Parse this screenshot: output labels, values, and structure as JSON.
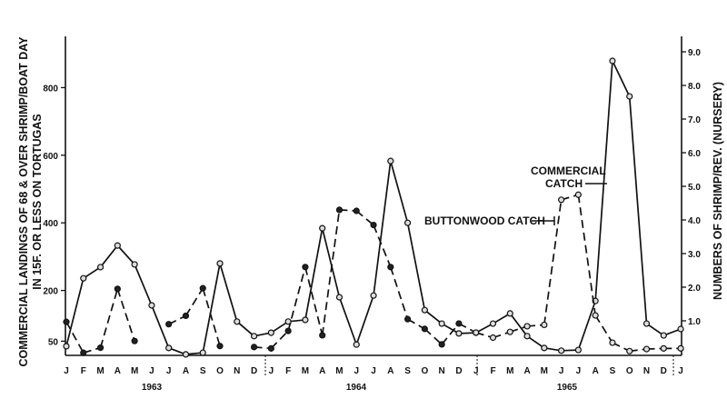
{
  "chart_data": {
    "type": "line",
    "x_labels": [
      "J",
      "F",
      "M",
      "A",
      "M",
      "J",
      "J",
      "A",
      "S",
      "O",
      "N",
      "D",
      "J",
      "F",
      "M",
      "A",
      "M",
      "J",
      "J",
      "A",
      "S",
      "O",
      "N",
      "D",
      "J",
      "F",
      "M",
      "A",
      "M",
      "J",
      "J",
      "A",
      "S",
      "O",
      "N",
      "D",
      "J"
    ],
    "years": [
      "1963",
      "1964",
      "1965"
    ],
    "left_axis": {
      "label_line1": "COMMERCIAL LANDINGS OF 68 & OVER SHRIMP/BOAT DAY",
      "label_line2": "IN 15F. OR LESS ON TORTUGAS",
      "ticks": [
        "50",
        "200",
        "400",
        "600",
        "800"
      ],
      "tick_values": [
        50,
        200,
        400,
        600,
        800
      ],
      "range": [
        0,
        900
      ]
    },
    "right_axis": {
      "label": "NUMBERS OF SHRIMP/REV. (NURSERY)",
      "ticks": [
        "1.0",
        "2.0",
        "3.0",
        "4.0",
        "5.0",
        "6.0",
        "7.0",
        "8.0",
        "9.0"
      ],
      "tick_values": [
        1,
        2,
        3,
        4,
        5,
        6,
        7,
        8,
        9
      ],
      "range": [
        0,
        9.5
      ]
    },
    "series": [
      {
        "name": "COMMERCIAL CATCH",
        "axis": "left",
        "style": "solid",
        "values": [
          35,
          236,
          269,
          333,
          277,
          156,
          30,
          11,
          16,
          280,
          108,
          65,
          75,
          108,
          113,
          384,
          180,
          40,
          185,
          583,
          400,
          142,
          102,
          73,
          75,
          102,
          132,
          65,
          30,
          22,
          24,
          169,
          879,
          774,
          102,
          67,
          86
        ]
      },
      {
        "name": "BUTTONWOOD CATCH",
        "axis": "right",
        "style": "dashed",
        "values": [
          0.97,
          0.05,
          0.2,
          1.95,
          0.4,
          null,
          0.9,
          1.15,
          1.97,
          0.25,
          null,
          0.22,
          0.18,
          0.7,
          2.6,
          0.57,
          4.3,
          4.27,
          3.85,
          2.6,
          1.05,
          0.76,
          0.3,
          0.92,
          0.65,
          0.5,
          0.67,
          0.84,
          0.88,
          4.6,
          4.75,
          1.16,
          0.35,
          0.1,
          0.16,
          0.18,
          0.18
        ]
      }
    ],
    "annotations": {
      "commercial_line1": "COMMERCIAL",
      "commercial_line2": "CATCH",
      "buttonwood": "BUTTONWOOD CATCH"
    },
    "grid": false,
    "legend": "none (inline annotations)"
  }
}
